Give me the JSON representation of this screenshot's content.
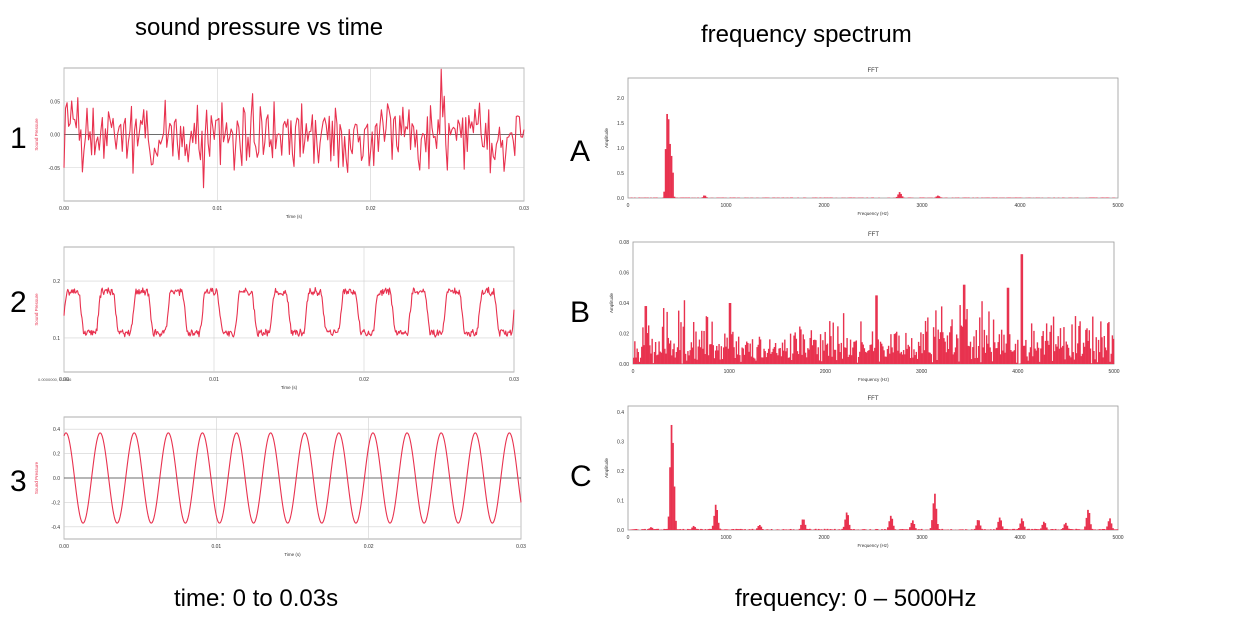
{
  "headings": {
    "left": "sound pressure vs time",
    "right": "frequency spectrum"
  },
  "footers": {
    "left": "time: 0 to 0.03s",
    "right": "frequency: 0 – 5000Hz"
  },
  "row_labels": [
    "1",
    "2",
    "3",
    "A",
    "B",
    "C"
  ],
  "colors": {
    "trace": "#e8324f",
    "axis": "#555555",
    "grid": "#d0d0d0",
    "zero": "#444444"
  },
  "chart_data": [
    {
      "id": "time-1",
      "type": "line",
      "xlabel": "Time (s)",
      "ylabel": "Sound Pressure",
      "xlim": [
        0,
        0.03
      ],
      "ylim": [
        -0.1,
        0.1
      ],
      "xticks": [
        "0.00",
        "0.01",
        "0.02",
        "0.03"
      ],
      "yticks": [
        "-0.05",
        "0.00",
        "0.05"
      ],
      "ytick_values": [
        -0.05,
        0,
        0.05
      ],
      "grid": true,
      "zero_line": true,
      "signal": {
        "kind": "noise",
        "amplitude": 0.045,
        "samples": 300
      },
      "peaks": [
        {
          "x": 0.0246,
          "y": 0.098
        },
        {
          "x": 0.0091,
          "y": -0.08
        }
      ]
    },
    {
      "id": "time-2",
      "type": "line",
      "xlabel": "Time (s)",
      "ylabel": "Sound Pressure",
      "xlim": [
        0,
        0.03
      ],
      "ylim": [
        0.04,
        0.26
      ],
      "xticks": [
        "0.00",
        "0.01",
        "0.02",
        "0.03"
      ],
      "yticks": [
        "0.1",
        "0.2"
      ],
      "ytick_values": [
        0.1,
        0.2
      ],
      "corner_note": "0.0000000, 0.2086",
      "grid": true,
      "zero_line": false,
      "signal": {
        "kind": "periodic",
        "cycles": 13,
        "offset": 0.145,
        "amplitude": 0.045,
        "harmonics": [
          [
            1,
            1
          ],
          [
            3,
            0.25
          ],
          [
            5,
            0.1
          ]
        ],
        "samples": 600
      }
    },
    {
      "id": "time-3",
      "type": "line",
      "xlabel": "Time (s)",
      "ylabel": "Sound Pressure",
      "xlim": [
        0,
        0.03
      ],
      "ylim": [
        -0.5,
        0.5
      ],
      "xticks": [
        "0.00",
        "0.01",
        "0.02",
        "0.03"
      ],
      "yticks": [
        "-0.4",
        "-0.2",
        "0.0",
        "0.2",
        "0.4"
      ],
      "ytick_values": [
        -0.4,
        -0.2,
        0,
        0.2,
        0.4
      ],
      "grid": true,
      "zero_line": true,
      "signal": {
        "kind": "sine",
        "cycles": 13.4,
        "amplitude": 0.37,
        "phase": 1.2,
        "samples": 700
      }
    },
    {
      "id": "fft-A",
      "type": "bar",
      "title": "FFT",
      "xlabel": "Frequency (Hz)",
      "ylabel": "Amplitude",
      "xlim": [
        0,
        5000
      ],
      "ylim": [
        0,
        2.4
      ],
      "xticks": [
        "0",
        "1000",
        "2000",
        "3000",
        "4000",
        "5000"
      ],
      "yticks": [
        "0.0",
        "0.5",
        "1.0",
        "1.5",
        "2.0"
      ],
      "ytick_values": [
        0,
        0.5,
        1,
        1.5,
        2
      ],
      "grid": false,
      "bin_hz": 15,
      "spectrum": {
        "kind": "peaks",
        "noise": 0.01,
        "peaks": [
          {
            "f": 390,
            "a": 1.35,
            "w": 15
          },
          {
            "f": 405,
            "a": 2.2,
            "w": 15
          },
          {
            "f": 420,
            "a": 1.6,
            "w": 15
          },
          {
            "f": 440,
            "a": 1.0,
            "w": 12
          },
          {
            "f": 455,
            "a": 0.6,
            "w": 10
          },
          {
            "f": 2770,
            "a": 0.12,
            "w": 25
          },
          {
            "f": 780,
            "a": 0.06,
            "w": 20
          },
          {
            "f": 3160,
            "a": 0.05,
            "w": 25
          }
        ]
      }
    },
    {
      "id": "fft-B",
      "type": "bar",
      "title": "FFT",
      "xlabel": "Frequency (Hz)",
      "ylabel": "Amplitude",
      "xlim": [
        0,
        5000
      ],
      "ylim": [
        0,
        0.08
      ],
      "xticks": [
        "0",
        "1000",
        "2000",
        "3000",
        "4000",
        "5000"
      ],
      "yticks": [
        "0.00",
        "0.02",
        "0.04",
        "0.06",
        "0.08"
      ],
      "ytick_values": [
        0,
        0.02,
        0.04,
        0.06,
        0.08
      ],
      "grid": false,
      "bin_hz": 12,
      "spectrum": {
        "kind": "noise",
        "base": 0.012,
        "spread": 0.028,
        "peaks": [
          {
            "f": 4040,
            "a": 0.072
          },
          {
            "f": 3440,
            "a": 0.052
          },
          {
            "f": 2530,
            "a": 0.045
          },
          {
            "f": 3900,
            "a": 0.05
          },
          {
            "f": 1010,
            "a": 0.04
          },
          {
            "f": 130,
            "a": 0.038
          }
        ]
      }
    },
    {
      "id": "fft-C",
      "type": "bar",
      "title": "FFT",
      "xlabel": "Frequency (Hz)",
      "ylabel": "Amplitude",
      "xlim": [
        0,
        5000
      ],
      "ylim": [
        0,
        0.42
      ],
      "xticks": [
        "0",
        "1000",
        "2000",
        "3000",
        "4000",
        "5000"
      ],
      "yticks": [
        "0.0",
        "0.1",
        "0.2",
        "0.3",
        "0.4"
      ],
      "ytick_values": [
        0,
        0.1,
        0.2,
        0.3,
        0.4
      ],
      "grid": false,
      "bin_hz": 15,
      "spectrum": {
        "kind": "peaks",
        "noise": 0.004,
        "peaks": [
          {
            "f": 445,
            "a": 0.41,
            "w": 22
          },
          {
            "f": 455,
            "a": 0.3,
            "w": 22
          },
          {
            "f": 895,
            "a": 0.09,
            "w": 25
          },
          {
            "f": 1340,
            "a": 0.02,
            "w": 25
          },
          {
            "f": 1785,
            "a": 0.04,
            "w": 25
          },
          {
            "f": 2230,
            "a": 0.065,
            "w": 25
          },
          {
            "f": 2680,
            "a": 0.05,
            "w": 25
          },
          {
            "f": 2900,
            "a": 0.035,
            "w": 25
          },
          {
            "f": 3125,
            "a": 0.125,
            "w": 25
          },
          {
            "f": 3570,
            "a": 0.04,
            "w": 25
          },
          {
            "f": 3790,
            "a": 0.045,
            "w": 25
          },
          {
            "f": 4015,
            "a": 0.04,
            "w": 25
          },
          {
            "f": 4240,
            "a": 0.03,
            "w": 25
          },
          {
            "f": 4460,
            "a": 0.025,
            "w": 25
          },
          {
            "f": 4690,
            "a": 0.075,
            "w": 25
          },
          {
            "f": 4910,
            "a": 0.04,
            "w": 25
          },
          {
            "f": 235,
            "a": 0.01,
            "w": 25
          },
          {
            "f": 670,
            "a": 0.015,
            "w": 25
          }
        ]
      }
    }
  ]
}
